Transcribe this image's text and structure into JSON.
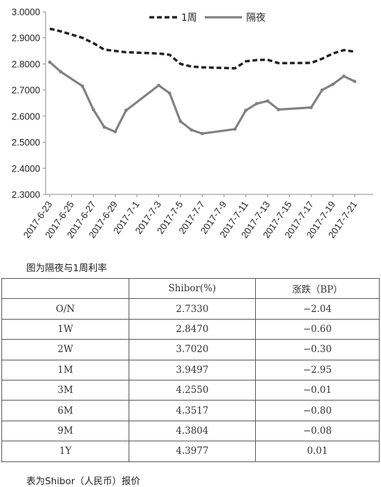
{
  "chart_data": {
    "type": "line",
    "x": [
      "2017-6-23",
      "2017-6-24",
      "2017-6-26",
      "2017-6-27",
      "2017-6-28",
      "2017-6-29",
      "2017-6-30",
      "2017-7-3",
      "2017-7-4",
      "2017-7-5",
      "2017-7-6",
      "2017-7-7",
      "2017-7-10",
      "2017-7-11",
      "2017-7-12",
      "2017-7-13",
      "2017-7-14",
      "2017-7-17",
      "2017-7-18",
      "2017-7-19",
      "2017-7-20",
      "2017-7-21"
    ],
    "x_ticks": [
      "2017-6-23",
      "2017-6-25",
      "2017-6-27",
      "2017-6-29",
      "2017-7-1",
      "2017-7-3",
      "2017-7-5",
      "2017-7-7",
      "2017-7-9",
      "2017-7-11",
      "2017-7-13",
      "2017-7-15",
      "2017-7-17",
      "2017-7-19",
      "2017-7-21"
    ],
    "y_ticks": [
      "3.0000",
      "2.9000",
      "2.8000",
      "2.7000",
      "2.6000",
      "2.5000",
      "2.4000",
      "2.3000"
    ],
    "ylim": [
      2.3,
      3.0
    ],
    "series": [
      {
        "name": "1周",
        "style": "dashed",
        "color": "#222222",
        "values": [
          2.935,
          2.925,
          2.9,
          2.88,
          2.855,
          2.85,
          2.845,
          2.84,
          2.835,
          2.8,
          2.79,
          2.787,
          2.783,
          2.81,
          2.815,
          2.816,
          2.803,
          2.804,
          2.82,
          2.84,
          2.853,
          2.847
        ]
      },
      {
        "name": "隔夜",
        "style": "solid",
        "color": "#808080",
        "values": [
          2.807,
          2.77,
          2.715,
          2.625,
          2.558,
          2.54,
          2.622,
          2.718,
          2.688,
          2.58,
          2.547,
          2.533,
          2.55,
          2.622,
          2.648,
          2.658,
          2.625,
          2.633,
          2.7,
          2.722,
          2.753,
          2.733
        ]
      }
    ],
    "legend_position": "top-center"
  },
  "captions": {
    "chart": "图为隔夜与1周利率",
    "table": "表为Shibor（人民币）报价"
  },
  "table": {
    "headers": [
      "",
      "Shibor(%)",
      "涨跌（BP）"
    ],
    "rows": [
      [
        "O/N",
        "2.7330",
        "−2.04"
      ],
      [
        "1W",
        "2.8470",
        "−0.60"
      ],
      [
        "2W",
        "3.7020",
        "−0.30"
      ],
      [
        "1M",
        "3.9497",
        "−2.95"
      ],
      [
        "3M",
        "4.2550",
        "−0.01"
      ],
      [
        "6M",
        "4.3517",
        "−0.80"
      ],
      [
        "9M",
        "4.3804",
        "−0.08"
      ],
      [
        "1Y",
        "4.3977",
        "0.01"
      ]
    ]
  }
}
